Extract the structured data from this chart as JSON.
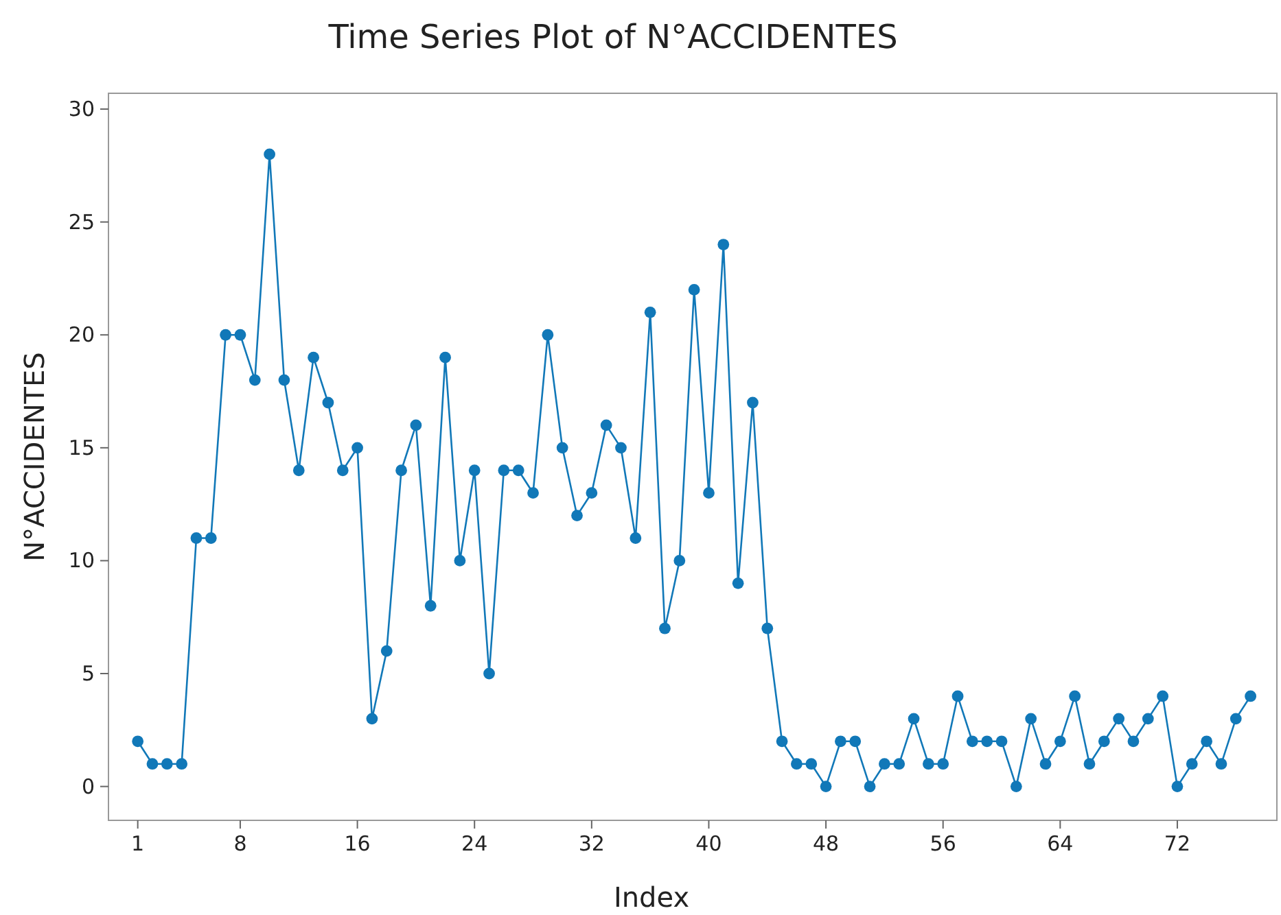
{
  "chart_data": {
    "type": "line",
    "title": "Time Series Plot of N°ACCIDENTES",
    "xlabel": "Index",
    "ylabel": "N°ACCIDENTES",
    "x": [
      1,
      2,
      3,
      4,
      5,
      6,
      7,
      8,
      9,
      10,
      11,
      12,
      13,
      14,
      15,
      16,
      17,
      18,
      19,
      20,
      21,
      22,
      23,
      24,
      25,
      26,
      27,
      28,
      29,
      30,
      31,
      32,
      33,
      34,
      35,
      36,
      37,
      38,
      39,
      40,
      41,
      42,
      43,
      44,
      45,
      46,
      47,
      48,
      49,
      50,
      51,
      52,
      53,
      54,
      55,
      56,
      57,
      58,
      59,
      60,
      61,
      62,
      63,
      64,
      65,
      66,
      67,
      68,
      69,
      70,
      71,
      72,
      73,
      74,
      75,
      76,
      77
    ],
    "series": [
      {
        "color": "#1178b8",
        "values": [
          2,
          1,
          1,
          1,
          11,
          11,
          20,
          20,
          18,
          28,
          18,
          14,
          19,
          17,
          14,
          15,
          3,
          6,
          14,
          16,
          8,
          19,
          10,
          14,
          5,
          14,
          14,
          13,
          20,
          15,
          12,
          13,
          16,
          15,
          11,
          21,
          7,
          10,
          22,
          13,
          24,
          9,
          17,
          7,
          2,
          1,
          1,
          0,
          2,
          2,
          0,
          1,
          1,
          3,
          1,
          1,
          4,
          2,
          2,
          2,
          0,
          3,
          1,
          2,
          4,
          1,
          2,
          3,
          2,
          3,
          4,
          0,
          1,
          2,
          1,
          3,
          4
        ]
      }
    ],
    "xlim": [
      -1,
      78.8
    ],
    "ylim": [
      -1.5,
      30.7
    ],
    "xticks": [
      1,
      8,
      16,
      24,
      32,
      40,
      48,
      56,
      64,
      72
    ],
    "yticks": [
      0,
      5,
      10,
      15,
      20,
      25,
      30
    ],
    "grid": false,
    "marker": "circle",
    "line_style": "solid"
  }
}
